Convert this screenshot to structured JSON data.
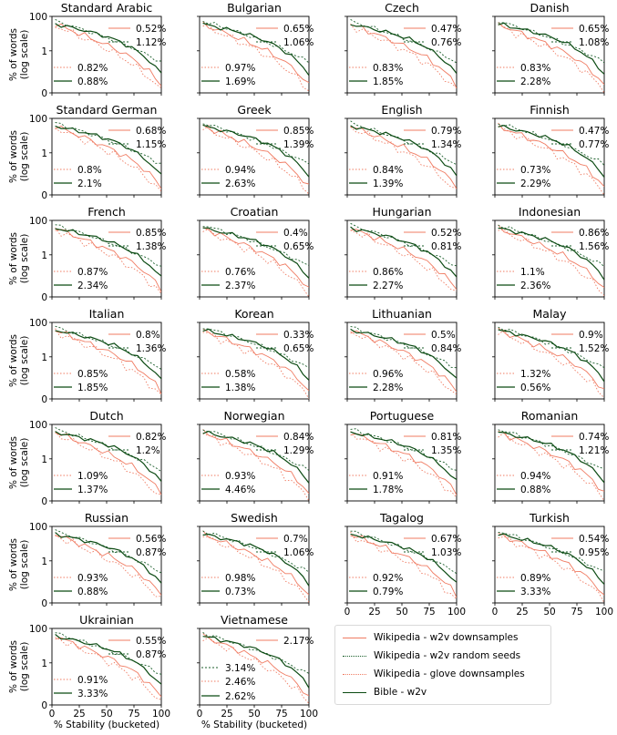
{
  "chart_data": {
    "type": "line",
    "ylabel": "% of words\n(log scale)",
    "xlabel": "% Stability (bucketed)",
    "x_ticks": [
      0,
      25,
      50,
      75,
      100
    ],
    "y_ticks": [
      "0",
      "1",
      "100"
    ],
    "xlim": [
      0,
      100
    ],
    "ylim_label": "log scale, bottom label 0, top label 100",
    "series_styles": [
      {
        "key": "w2v_downsamples",
        "name": "Wikipedia - w2v downsamples",
        "color": "#f07b62",
        "dash": "none"
      },
      {
        "key": "w2v_seeds",
        "name": "Wikipedia - w2v random seeds",
        "color": "#1a5e2a",
        "dash": "2,2"
      },
      {
        "key": "glove",
        "name": "Wikipedia - glove downsamples",
        "color": "#f07b62",
        "dash": "1.5,2"
      },
      {
        "key": "bible",
        "name": "Bible - w2v",
        "color": "#0b4a12",
        "dash": "none"
      }
    ],
    "panels": [
      {
        "title": "Standard Arabic",
        "w2v_downsamples": "0.52%",
        "w2v_seeds": "1.12%",
        "glove": "0.82%",
        "bible": "0.88%"
      },
      {
        "title": "Bulgarian",
        "w2v_downsamples": "0.65%",
        "w2v_seeds": "1.06%",
        "glove": "0.97%",
        "bible": "1.69%"
      },
      {
        "title": "Czech",
        "w2v_downsamples": "0.47%",
        "w2v_seeds": "0.76%",
        "glove": "0.83%",
        "bible": "1.85%"
      },
      {
        "title": "Danish",
        "w2v_downsamples": "0.65%",
        "w2v_seeds": "1.08%",
        "glove": "0.83%",
        "bible": "2.28%"
      },
      {
        "title": "Standard German",
        "w2v_downsamples": "0.68%",
        "w2v_seeds": "1.15%",
        "glove": "0.8%",
        "bible": "2.1%"
      },
      {
        "title": "Greek",
        "w2v_downsamples": "0.85%",
        "w2v_seeds": "1.39%",
        "glove": "0.94%",
        "bible": "2.63%"
      },
      {
        "title": "English",
        "w2v_downsamples": "0.79%",
        "w2v_seeds": "1.34%",
        "glove": "0.84%",
        "bible": "1.39%"
      },
      {
        "title": "Finnish",
        "w2v_downsamples": "0.47%",
        "w2v_seeds": "0.77%",
        "glove": "0.73%",
        "bible": "2.29%"
      },
      {
        "title": "French",
        "w2v_downsamples": "0.85%",
        "w2v_seeds": "1.38%",
        "glove": "0.87%",
        "bible": "2.34%"
      },
      {
        "title": "Croatian",
        "w2v_downsamples": "0.4%",
        "w2v_seeds": "0.65%",
        "glove": "0.76%",
        "bible": "2.37%"
      },
      {
        "title": "Hungarian",
        "w2v_downsamples": "0.52%",
        "w2v_seeds": "0.81%",
        "glove": "0.86%",
        "bible": "2.27%"
      },
      {
        "title": "Indonesian",
        "w2v_downsamples": "0.86%",
        "w2v_seeds": "1.56%",
        "glove": "1.1%",
        "bible": "2.36%"
      },
      {
        "title": "Italian",
        "w2v_downsamples": "0.8%",
        "w2v_seeds": "1.36%",
        "glove": "0.85%",
        "bible": "1.85%"
      },
      {
        "title": "Korean",
        "w2v_downsamples": "0.33%",
        "w2v_seeds": "0.65%",
        "glove": "0.58%",
        "bible": "1.38%"
      },
      {
        "title": "Lithuanian",
        "w2v_downsamples": "0.5%",
        "w2v_seeds": "0.84%",
        "glove": "0.96%",
        "bible": "2.28%"
      },
      {
        "title": "Malay",
        "w2v_downsamples": "0.9%",
        "w2v_seeds": "1.52%",
        "glove": "1.32%",
        "bible": "0.56%"
      },
      {
        "title": "Dutch",
        "w2v_downsamples": "0.82%",
        "w2v_seeds": "1.2%",
        "glove": "1.09%",
        "bible": "1.37%"
      },
      {
        "title": "Norwegian",
        "w2v_downsamples": "0.84%",
        "w2v_seeds": "1.29%",
        "glove": "0.93%",
        "bible": "4.46%"
      },
      {
        "title": "Portuguese",
        "w2v_downsamples": "0.81%",
        "w2v_seeds": "1.35%",
        "glove": "0.91%",
        "bible": "1.78%"
      },
      {
        "title": "Romanian",
        "w2v_downsamples": "0.74%",
        "w2v_seeds": "1.21%",
        "glove": "0.94%",
        "bible": "0.88%"
      },
      {
        "title": "Russian",
        "w2v_downsamples": "0.56%",
        "w2v_seeds": "0.87%",
        "glove": "0.93%",
        "bible": "0.88%"
      },
      {
        "title": "Swedish",
        "w2v_downsamples": "0.7%",
        "w2v_seeds": "1.06%",
        "glove": "0.98%",
        "bible": "0.73%"
      },
      {
        "title": "Tagalog",
        "w2v_downsamples": "0.67%",
        "w2v_seeds": "1.03%",
        "glove": "0.92%",
        "bible": "0.79%"
      },
      {
        "title": "Turkish",
        "w2v_downsamples": "0.54%",
        "w2v_seeds": "0.95%",
        "glove": "0.89%",
        "bible": "3.33%"
      },
      {
        "title": "Ukrainian",
        "w2v_downsamples": "0.55%",
        "w2v_seeds": "0.87%",
        "glove": "0.91%",
        "bible": "3.33%"
      },
      {
        "title": "Vietnamese",
        "w2v_downsamples": "2.17%",
        "w2v_seeds": "3.14%",
        "glove": "2.46%",
        "bible": "2.62%"
      }
    ]
  }
}
